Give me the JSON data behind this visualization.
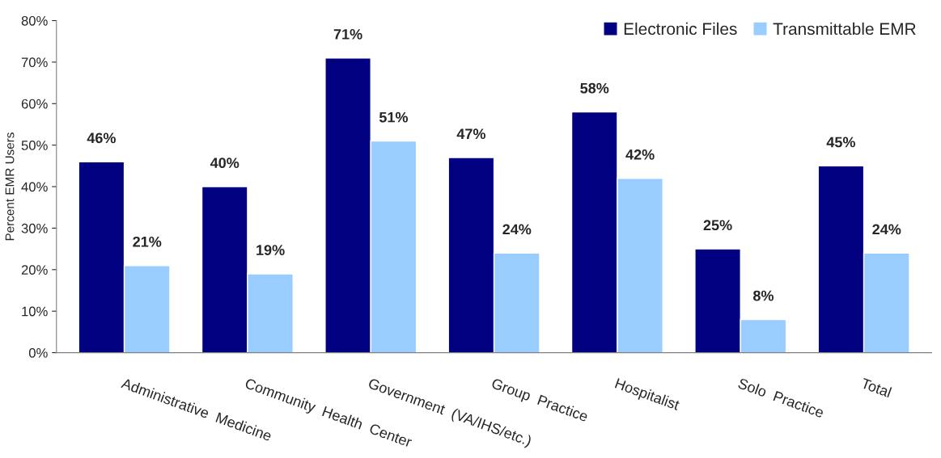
{
  "chart_data": {
    "type": "bar",
    "ylabel": "Percent EMR Users",
    "categories": [
      "Administrative  Medicine",
      "Community  Health  Center",
      "Government  (VA/IHS/etc.)",
      "Group  Practice",
      "Hospitalist",
      "Solo  Practice",
      "Total"
    ],
    "series": [
      {
        "name": "Electronic Files",
        "color": "#000080",
        "values": [
          46,
          40,
          71,
          47,
          58,
          25,
          45
        ],
        "value_labels": [
          "46%",
          "40%",
          "71%",
          "47%",
          "58%",
          "25%",
          "45%"
        ]
      },
      {
        "name": "Transmittable EMR",
        "color": "#99ccff",
        "values": [
          21,
          19,
          51,
          24,
          42,
          8,
          24
        ],
        "value_labels": [
          "21%",
          "19%",
          "51%",
          "24%",
          "42%",
          "8%",
          "24%"
        ]
      }
    ],
    "ylim": [
      0,
      80
    ],
    "yticks": [
      {
        "value": 0,
        "label": "0%"
      },
      {
        "value": 10,
        "label": "10%"
      },
      {
        "value": 20,
        "label": "20%"
      },
      {
        "value": 30,
        "label": "30%"
      },
      {
        "value": 40,
        "label": "40%"
      },
      {
        "value": 50,
        "label": "50%"
      },
      {
        "value": 60,
        "label": "60%"
      },
      {
        "value": 70,
        "label": "70%"
      },
      {
        "value": 80,
        "label": "80%"
      }
    ],
    "grid": false,
    "legend": "top right"
  }
}
